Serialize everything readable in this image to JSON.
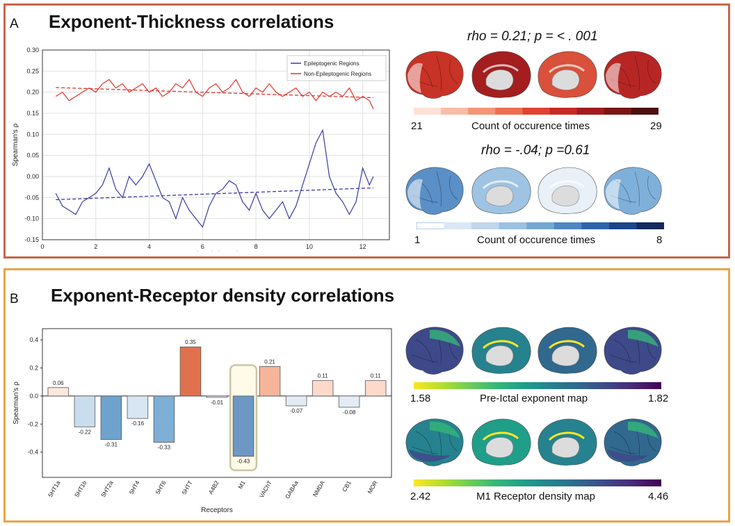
{
  "panel_a": {
    "letter": "A",
    "title": "Exponent-Thickness correlations",
    "stat_top": "rho = 0.21; p = < . 001",
    "stat_bottom": "rho = -.04; p =0.61",
    "colorbar_top": {
      "min": "21",
      "max": "29",
      "label": "Count of occurence times",
      "colors": [
        "#fde0d6",
        "#f8bca7",
        "#f39578",
        "#ec6f52",
        "#e04232",
        "#c72a24",
        "#a01c1e",
        "#7a1515",
        "#4d0e0e"
      ]
    },
    "colorbar_bottom": {
      "min": "1",
      "max": "8",
      "label": "Count of occurence times",
      "colors": [
        "#ffffff",
        "#dbe7f4",
        "#c0d6ec",
        "#9cc1e0",
        "#75a7d3",
        "#4e87c2",
        "#2f64ac",
        "#1a468a",
        "#142a5e"
      ]
    },
    "brain_colors_top": [
      "#c93226",
      "#a41d1f",
      "#d9503b",
      "#b72625"
    ],
    "brain_colors_bottom": [
      "#5a8fc7",
      "#9ec3e3",
      "#e9f0f8",
      "#7fb0da"
    ]
  },
  "panel_b": {
    "letter": "B",
    "title": "Exponent-Receptor density correlations",
    "colorbar_top": {
      "min": "1.58",
      "max": "1.82",
      "label": "Pre-Ictal exponent map"
    },
    "colorbar_bottom": {
      "min": "2.42",
      "max": "4.46",
      "label": "M1 Receptor density map"
    },
    "viridis": [
      "#fde725",
      "#b5de2b",
      "#6ece58",
      "#35b779",
      "#1f9e89",
      "#26828e",
      "#31688e",
      "#3e4989",
      "#482878",
      "#440154"
    ]
  },
  "chart_data": [
    {
      "type": "line",
      "xlabel": "Time (minutes)",
      "ylabel": "Spearman's ρ",
      "xlim": [
        0,
        13
      ],
      "ylim": [
        -0.15,
        0.3
      ],
      "xticks": [
        0,
        2,
        4,
        6,
        8,
        10,
        12
      ],
      "yticks": [
        -0.15,
        -0.1,
        -0.05,
        0.0,
        0.05,
        0.1,
        0.15,
        0.2,
        0.25,
        0.3
      ],
      "ytick_labels": [
        "-0.15",
        "-0.10",
        "-0.05",
        "0.00",
        "0.05",
        "0.10",
        "0.15",
        "0.20",
        "0.25",
        "0.30"
      ],
      "grid": true,
      "legend": "top-right",
      "series": [
        {
          "name": "Epileptogenic Regions",
          "color": "#3a3aa3",
          "x": [
            0.5,
            0.75,
            1.0,
            1.25,
            1.5,
            1.75,
            2.0,
            2.25,
            2.5,
            2.75,
            3.0,
            3.25,
            3.5,
            3.75,
            4.0,
            4.25,
            4.5,
            4.75,
            5.0,
            5.25,
            5.5,
            5.75,
            6.0,
            6.25,
            6.5,
            6.75,
            7.0,
            7.25,
            7.5,
            7.75,
            8.0,
            8.25,
            8.5,
            8.75,
            9.0,
            9.25,
            9.5,
            9.75,
            10.0,
            10.25,
            10.5,
            10.75,
            11.0,
            11.25,
            11.5,
            11.75,
            12.0,
            12.25,
            12.4
          ],
          "y": [
            -0.04,
            -0.07,
            -0.08,
            -0.09,
            -0.06,
            -0.05,
            -0.04,
            -0.02,
            0.02,
            -0.03,
            -0.05,
            0.0,
            -0.02,
            0.0,
            0.03,
            -0.01,
            -0.05,
            -0.06,
            -0.1,
            -0.05,
            -0.08,
            -0.1,
            -0.12,
            -0.07,
            -0.04,
            -0.03,
            -0.01,
            -0.02,
            -0.06,
            -0.08,
            -0.04,
            -0.08,
            -0.1,
            -0.08,
            -0.06,
            -0.1,
            -0.07,
            -0.02,
            0.03,
            0.08,
            0.11,
            0.0,
            -0.04,
            -0.06,
            -0.09,
            -0.06,
            0.02,
            -0.02,
            0.0
          ],
          "trend": [
            -0.055,
            -0.027
          ]
        },
        {
          "name": "Non-Epileptogenic Regions",
          "color": "#e2332c",
          "x": [
            0.5,
            0.75,
            1.0,
            1.25,
            1.5,
            1.75,
            2.0,
            2.25,
            2.5,
            2.75,
            3.0,
            3.25,
            3.5,
            3.75,
            4.0,
            4.25,
            4.5,
            4.75,
            5.0,
            5.25,
            5.5,
            5.75,
            6.0,
            6.25,
            6.5,
            6.75,
            7.0,
            7.25,
            7.5,
            7.75,
            8.0,
            8.25,
            8.5,
            8.75,
            9.0,
            9.25,
            9.5,
            9.75,
            10.0,
            10.25,
            10.5,
            10.75,
            11.0,
            11.25,
            11.5,
            11.75,
            12.0,
            12.25,
            12.4
          ],
          "y": [
            0.19,
            0.2,
            0.18,
            0.19,
            0.2,
            0.21,
            0.2,
            0.22,
            0.23,
            0.21,
            0.22,
            0.2,
            0.21,
            0.22,
            0.2,
            0.21,
            0.19,
            0.2,
            0.22,
            0.21,
            0.23,
            0.2,
            0.19,
            0.21,
            0.22,
            0.2,
            0.21,
            0.23,
            0.2,
            0.19,
            0.21,
            0.2,
            0.22,
            0.2,
            0.19,
            0.2,
            0.21,
            0.19,
            0.2,
            0.18,
            0.2,
            0.19,
            0.2,
            0.19,
            0.21,
            0.18,
            0.19,
            0.18,
            0.16
          ],
          "trend": [
            0.211,
            0.187
          ]
        }
      ]
    },
    {
      "type": "bar",
      "xlabel": "Receptors",
      "ylabel": "Spearman's ρ",
      "ylim": [
        -0.58,
        0.48
      ],
      "yticks": [
        -0.4,
        -0.2,
        0.0,
        0.2,
        0.4
      ],
      "ytick_labels": [
        "-0.4",
        "-0.2",
        "0.0",
        "0.2",
        "0.4"
      ],
      "categories": [
        "5HT1a",
        "5HT1b",
        "5HT2a",
        "5HT4",
        "5HT6",
        "5HTT",
        "A4B2",
        "M1",
        "VAChT",
        "GABAa",
        "NMDA",
        "CB1",
        "MOR"
      ],
      "values": [
        0.06,
        -0.22,
        -0.31,
        -0.16,
        -0.33,
        0.35,
        -0.01,
        -0.43,
        0.21,
        -0.07,
        0.11,
        -0.08,
        0.11
      ],
      "value_labels": [
        "0.06",
        "-0.22",
        "-0.31",
        "-0.16",
        "-0.33",
        "0.35",
        "-0.01",
        "-0.43",
        "0.21",
        "-0.07",
        "0.11",
        "-0.08",
        "0.11"
      ],
      "colors": [
        "#fde7df",
        "#c9ddee",
        "#6fa3cd",
        "#d7e6f2",
        "#7eafd6",
        "#e0714f",
        "#e8eef6",
        "#6f97c4",
        "#f6b59b",
        "#e3ecf5",
        "#fcd9cb",
        "#e3ecf5",
        "#fcd9cb"
      ],
      "highlight": "M1"
    }
  ]
}
